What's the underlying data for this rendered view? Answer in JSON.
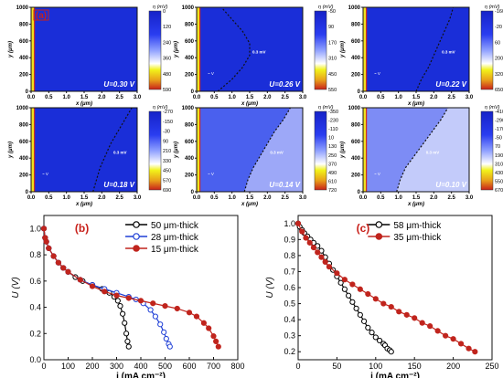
{
  "heatmap_panel": {
    "label": "(a)",
    "ylabel": "y (μm)",
    "xlabel": "x (μm)",
    "x_ticks": [
      "0.0",
      "0.5",
      "1.0",
      "1.5",
      "2.0",
      "2.5",
      "3.0"
    ],
    "y_ticks": [
      "0",
      "200",
      "400",
      "600",
      "800",
      "1000"
    ],
    "colorbar_title": "η (mV)"
  },
  "chart_data": [
    {
      "type": "heatmap",
      "title": "U=0.30 V",
      "annotations": [],
      "colorbar_ticks": [
        "0",
        "120",
        "240",
        "360",
        "480",
        "590"
      ],
      "boundary_x": []
    },
    {
      "type": "heatmap",
      "title": "U=0.26 V",
      "annotations": [
        "~ V",
        "0.3 mV"
      ],
      "colorbar_ticks": [
        "-50",
        "90",
        "170",
        "310",
        "450",
        "550"
      ],
      "boundary_x": [
        0.6,
        1.0,
        1.3,
        1.5,
        1.5,
        1.3,
        1.0,
        0.7
      ]
    },
    {
      "type": "heatmap",
      "title": "U=0.22 V",
      "annotations": [
        "~ V",
        "0.3 mV"
      ],
      "colorbar_ticks": [
        "-160",
        "-20",
        "60",
        "200",
        "320",
        "650"
      ],
      "boundary_x": [
        1.5,
        1.65,
        1.85,
        2.0,
        2.15,
        2.3,
        2.45,
        2.55
      ]
    },
    {
      "type": "heatmap",
      "title": "U=0.18 V",
      "annotations": [
        "~ V",
        "0.3 mV"
      ],
      "colorbar_ticks": [
        "-270",
        "-150",
        "-30",
        "90",
        "210",
        "330",
        "450",
        "570",
        "690"
      ],
      "boundary_x": [
        1.75,
        1.85,
        1.95,
        2.1,
        2.25,
        2.45,
        2.65,
        2.85
      ]
    },
    {
      "type": "heatmap",
      "title": "U=0.14 V",
      "annotations": [
        "~ V",
        "0.3 mV"
      ],
      "colorbar_ticks": [
        "-350",
        "-230",
        "-110",
        "10",
        "130",
        "250",
        "370",
        "490",
        "610",
        "720"
      ],
      "boundary_x": [
        1.35,
        1.45,
        1.6,
        1.8,
        2.0,
        2.2,
        2.45,
        2.65
      ]
    },
    {
      "type": "heatmap",
      "title": "U=0.10 V",
      "annotations": [
        "~ V",
        "0.3 mV"
      ],
      "colorbar_ticks": [
        "-410",
        "-290",
        "-170",
        "-50",
        "70",
        "190",
        "310",
        "430",
        "550",
        "670"
      ],
      "boundary_x": [
        0.95,
        1.05,
        1.2,
        1.45,
        1.7,
        1.95,
        2.2,
        2.4
      ]
    },
    {
      "type": "line",
      "label": "(b)",
      "xlabel": "i (mA cm⁻²)",
      "ylabel": "U (V)",
      "xlim": [
        0,
        800
      ],
      "ylim": [
        0.0,
        1.1
      ],
      "xticks": [
        0,
        100,
        200,
        300,
        400,
        500,
        600,
        700,
        800
      ],
      "yticks": [
        0.0,
        0.2,
        0.4,
        0.6,
        0.8,
        1.0
      ],
      "legend": "top-right",
      "series": [
        {
          "name": "50 μm-thick",
          "color": "#000000",
          "marker": "open-circle",
          "x": [
            0,
            5,
            10,
            20,
            40,
            60,
            80,
            100,
            130,
            160,
            200,
            240,
            270,
            290,
            305,
            315,
            325,
            333,
            340,
            345,
            350
          ],
          "y": [
            1.0,
            0.93,
            0.9,
            0.85,
            0.79,
            0.74,
            0.7,
            0.67,
            0.63,
            0.6,
            0.57,
            0.54,
            0.51,
            0.48,
            0.45,
            0.41,
            0.35,
            0.28,
            0.2,
            0.14,
            0.1
          ]
        },
        {
          "name": "28 μm-thick",
          "color": "#1f3fd6",
          "marker": "open-circle",
          "x": [
            0,
            5,
            10,
            20,
            40,
            60,
            80,
            100,
            150,
            200,
            250,
            300,
            350,
            380,
            410,
            440,
            460,
            480,
            495,
            505,
            515,
            520
          ],
          "y": [
            1.0,
            0.93,
            0.9,
            0.85,
            0.79,
            0.74,
            0.7,
            0.67,
            0.61,
            0.57,
            0.54,
            0.51,
            0.48,
            0.46,
            0.43,
            0.38,
            0.33,
            0.27,
            0.21,
            0.16,
            0.12,
            0.1
          ]
        },
        {
          "name": "15 μm-thick",
          "color": "#c0241d",
          "marker": "filled-circle",
          "x": [
            0,
            5,
            10,
            20,
            40,
            60,
            80,
            100,
            150,
            200,
            250,
            300,
            350,
            400,
            450,
            500,
            550,
            600,
            630,
            660,
            680,
            700,
            710,
            720
          ],
          "y": [
            1.0,
            0.93,
            0.9,
            0.85,
            0.79,
            0.74,
            0.7,
            0.67,
            0.61,
            0.56,
            0.52,
            0.49,
            0.47,
            0.45,
            0.43,
            0.41,
            0.39,
            0.36,
            0.33,
            0.28,
            0.24,
            0.18,
            0.14,
            0.1
          ]
        }
      ]
    },
    {
      "type": "line",
      "label": "(c)",
      "xlabel": "i (mA cm⁻²)",
      "ylabel": "U (V)",
      "xlim": [
        0,
        250
      ],
      "ylim": [
        0.15,
        1.05
      ],
      "xticks": [
        0,
        50,
        100,
        150,
        200,
        250
      ],
      "yticks": [
        0.2,
        0.3,
        0.4,
        0.5,
        0.6,
        0.7,
        0.8,
        0.9,
        1.0
      ],
      "legend": "top-right",
      "series": [
        {
          "name": "58 μm-thick",
          "color": "#000000",
          "marker": "open-circle",
          "x": [
            0,
            2,
            5,
            8,
            12,
            16,
            20,
            25,
            30,
            35,
            40,
            45,
            50,
            55,
            60,
            65,
            70,
            75,
            80,
            85,
            90,
            95,
            100,
            105,
            110,
            112,
            115,
            118,
            120
          ],
          "y": [
            1.0,
            0.98,
            0.96,
            0.94,
            0.92,
            0.9,
            0.88,
            0.86,
            0.83,
            0.79,
            0.75,
            0.71,
            0.67,
            0.63,
            0.59,
            0.55,
            0.51,
            0.47,
            0.43,
            0.39,
            0.35,
            0.32,
            0.29,
            0.27,
            0.25,
            0.24,
            0.22,
            0.21,
            0.2
          ]
        },
        {
          "name": "35 μm-thick",
          "color": "#c0241d",
          "marker": "filled-circle",
          "x": [
            0,
            5,
            10,
            15,
            20,
            25,
            30,
            35,
            40,
            50,
            60,
            70,
            80,
            90,
            100,
            110,
            120,
            130,
            140,
            150,
            160,
            170,
            180,
            190,
            200,
            210,
            220,
            228
          ],
          "y": [
            1.0,
            0.95,
            0.91,
            0.88,
            0.85,
            0.82,
            0.79,
            0.76,
            0.73,
            0.69,
            0.65,
            0.62,
            0.59,
            0.56,
            0.53,
            0.5,
            0.48,
            0.45,
            0.43,
            0.41,
            0.38,
            0.36,
            0.33,
            0.3,
            0.28,
            0.25,
            0.22,
            0.2
          ]
        }
      ]
    }
  ]
}
